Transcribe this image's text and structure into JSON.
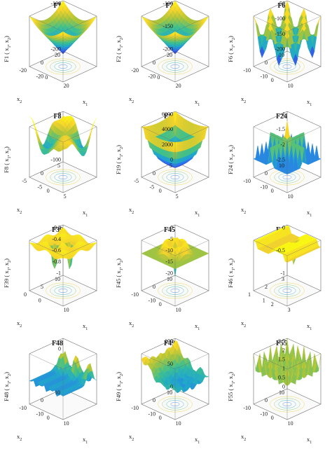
{
  "figure": {
    "colormap": [
      "#3e26a8",
      "#2e6ff2",
      "#1fa9c9",
      "#3ec08c",
      "#a8c33a",
      "#f6d32a",
      "#f9fb0e"
    ],
    "box_color": "#6b6b6b"
  },
  "chart_data": [
    {
      "type": "surface",
      "title": "F1",
      "zlabel": "F1 ( x",
      "zlabel_sub1": "1",
      "zlabel_comma": ", x",
      "zlabel_sub2": "2",
      "zlabel_close": ")",
      "xlabel": "x",
      "xlabel_sub": "1",
      "ylabel": "x",
      "ylabel_sub": "2",
      "zticks": [
        "-100",
        "-200"
      ],
      "xticks": [
        "0",
        "20"
      ],
      "yticks": [
        "20",
        "0",
        "-20"
      ],
      "yticks2": [
        "-20"
      ],
      "zlim": [
        -200,
        0
      ],
      "grid": true,
      "contour": "circular",
      "shape": "inverted-cone"
    },
    {
      "type": "surface",
      "title": "F2",
      "zlabel": "F2 ( x",
      "zlabel_sub1": "1",
      "zlabel_comma": ", x",
      "zlabel_sub2": "2",
      "zlabel_close": ")",
      "xlabel": "x",
      "xlabel_sub": "1",
      "ylabel": "x",
      "ylabel_sub": "2",
      "zticks": [
        "-100",
        "-150",
        "-200"
      ],
      "xticks": [
        "0",
        "20"
      ],
      "yticks": [
        "20",
        "0",
        "-20"
      ],
      "yticks2": [
        "-20"
      ],
      "zlim": [
        -200,
        -100
      ],
      "grid": true,
      "contour": "circular",
      "shape": "inverted-cone"
    },
    {
      "type": "surface",
      "title": "F6",
      "zlabel": "F6 ( x",
      "zlabel_sub1": "1",
      "zlabel_comma": ", x",
      "zlabel_sub2": "2",
      "zlabel_close": ")",
      "xlabel": "x",
      "xlabel_sub": "1",
      "ylabel": "x",
      "ylabel_sub": "2",
      "zticks": [
        "-50",
        "-100",
        "-150",
        "-200"
      ],
      "xticks": [
        "10"
      ],
      "yticks": [
        "10",
        "0",
        "-10"
      ],
      "yticks2": [
        "-10",
        "0"
      ],
      "zlim": [
        -200,
        -50
      ],
      "grid": true,
      "contour": "grid",
      "shape": "egg-crate"
    },
    {
      "type": "surface",
      "title": "F8",
      "zlabel": "F8 ( x",
      "zlabel_sub1": "1",
      "zlabel_comma": ", x",
      "zlabel_sub2": "2",
      "zlabel_close": ")",
      "xlabel": "x",
      "xlabel_sub": "1",
      "ylabel": "x",
      "ylabel_sub": "2",
      "zticks": [
        "0",
        "-100"
      ],
      "xticks": [
        "5"
      ],
      "yticks": [
        "5",
        "0",
        "-5"
      ],
      "yticks2": [
        "-5",
        "0"
      ],
      "zlim": [
        -150,
        0
      ],
      "grid": true,
      "contour": "blobs",
      "shape": "bumpy"
    },
    {
      "type": "surface",
      "title": "F19",
      "zlabel": "F19 ( x",
      "zlabel_sub1": "1",
      "zlabel_comma": ", x",
      "zlabel_sub2": "2",
      "zlabel_close": ")",
      "xlabel": "x",
      "xlabel_sub": "1",
      "ylabel": "x",
      "ylabel_sub": "2",
      "zticks": [
        "6000",
        "4000",
        "2000",
        "0"
      ],
      "xticks": [
        "5"
      ],
      "yticks": [
        "5",
        "0",
        "-5"
      ],
      "yticks2": [
        "-5",
        "0"
      ],
      "zlim": [
        0,
        6000
      ],
      "grid": true,
      "contour": "square",
      "shape": "bowl"
    },
    {
      "type": "surface",
      "title": "F24",
      "zlabel": "F24 ( x",
      "zlabel_sub1": "1",
      "zlabel_comma": ", x",
      "zlabel_sub2": "2",
      "zlabel_close": ")",
      "xlabel": "x",
      "xlabel_sub": "1",
      "ylabel": "x",
      "ylabel_sub": "2",
      "zticks": [
        "-1",
        "-1.5",
        "-2",
        "-2.5"
      ],
      "zticks_top": [
        "-.5"
      ],
      "xticks": [
        "10"
      ],
      "yticks": [
        "10",
        "0",
        "-10"
      ],
      "yticks2": [
        "-10",
        "0"
      ],
      "zlim": [
        -2.5,
        -0.5
      ],
      "grid": true,
      "contour": "lattice",
      "shape": "cross-ridges"
    },
    {
      "type": "surface",
      "title": "F39",
      "zlabel": "F39 ( x",
      "zlabel_sub1": "1",
      "zlabel_comma": ", x",
      "zlabel_sub2": "2",
      "zlabel_close": ")",
      "xlabel": "x",
      "xlabel_sub": "1",
      "ylabel": "x",
      "ylabel_sub": "2",
      "zticks": [
        "-0.2",
        "-0.4",
        "-0.6",
        "-0.8",
        "-1"
      ],
      "xticks": [
        "10"
      ],
      "yticks": [
        "10",
        "5",
        "0"
      ],
      "yticks2": [
        "0"
      ],
      "zlim": [
        -1,
        0
      ],
      "grid": true,
      "contour": "sparse",
      "shape": "spikes"
    },
    {
      "type": "surface",
      "title": "F45",
      "zlabel": "F45 ( x",
      "zlabel_sub1": "1",
      "zlabel_comma": ", x",
      "zlabel_sub2": "2",
      "zlabel_close": ")",
      "xlabel": "x",
      "xlabel_sub": "1",
      "ylabel": "x",
      "ylabel_sub": "2",
      "zticks": [
        "0",
        "-5",
        "-10",
        "-15",
        "-20"
      ],
      "xticks": [
        "10"
      ],
      "yticks": [
        "10",
        "0",
        "-10"
      ],
      "yticks2": [
        "-10",
        "0"
      ],
      "zlim": [
        -20,
        0
      ],
      "grid": true,
      "contour": "rings",
      "shape": "ring-well"
    },
    {
      "type": "surface",
      "title": "F46",
      "zlabel": "F46 ( x",
      "zlabel_sub1": "1",
      "zlabel_comma": ", x",
      "zlabel_sub2": "2",
      "zlabel_close": ")",
      "xlabel": "x",
      "xlabel_sub": "1",
      "ylabel": "x",
      "ylabel_sub": "2",
      "zticks": [
        "0",
        "-0.5",
        "-1"
      ],
      "xticks": [
        "3"
      ],
      "yticks": [
        "3",
        "2",
        "1"
      ],
      "yticks2": [
        "1",
        "2"
      ],
      "zlim": [
        -1,
        0
      ],
      "grid": true,
      "contour": "lines",
      "shape": "plateau-spike"
    },
    {
      "type": "surface",
      "title": "F48",
      "zlabel": "F48 ( x",
      "zlabel_sub1": "1",
      "zlabel_comma": ", x",
      "zlabel_sub2": "2",
      "zlabel_close": ")",
      "xlabel": "x",
      "xlabel_sub": "1",
      "ylabel": "x",
      "ylabel_sub": "2",
      "zticks": [
        "0"
      ],
      "xticks": [
        "10"
      ],
      "yticks": [
        "10",
        "0",
        "-10"
      ],
      "yticks2": [
        "-10",
        "0"
      ],
      "zlim": [
        0,
        1
      ],
      "grid": true,
      "contour": "none",
      "shape": "ridges"
    },
    {
      "type": "surface",
      "title": "F49",
      "zlabel": "F49 ( x",
      "zlabel_sub1": "1",
      "zlabel_comma": ", x",
      "zlabel_sub2": "2",
      "zlabel_close": ")",
      "xlabel": "x",
      "xlabel_sub": "1",
      "ylabel": "x",
      "ylabel_sub": "2",
      "zticks": [
        "100",
        "50",
        "0"
      ],
      "xticks": [
        "10"
      ],
      "yticks": [
        "10",
        "0",
        "-10"
      ],
      "yticks2": [
        "-10",
        "0"
      ],
      "zlim": [
        0,
        120
      ],
      "grid": true,
      "contour": "blobs",
      "shape": "valley"
    },
    {
      "type": "surface",
      "title": "F55",
      "zlabel": "F55 ( x",
      "zlabel_sub1": "1",
      "zlabel_comma": ", x",
      "zlabel_sub2": "2",
      "zlabel_close": ")",
      "xlabel": "x",
      "xlabel_sub": "1",
      "ylabel": "x",
      "ylabel_sub": "2",
      "zticks": [
        "2.5",
        "2",
        "1.5",
        "1",
        "0.5",
        "0"
      ],
      "xticks": [
        "10"
      ],
      "yticks": [
        "10",
        "0",
        "-10"
      ],
      "yticks2": [
        "-10",
        "0"
      ],
      "zlim": [
        0,
        2.5
      ],
      "grid": true,
      "contour": "grid",
      "shape": "spike-field"
    }
  ]
}
